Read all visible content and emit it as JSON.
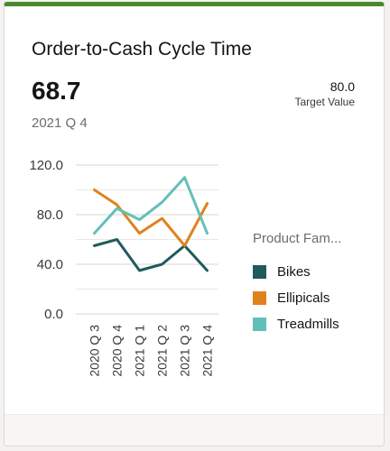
{
  "card": {
    "title": "Order-to-Cash Cycle Time",
    "kpi_value": "68.7",
    "kpi_period": "2021 Q 4",
    "target_value": "80.0",
    "target_label": "Target Value",
    "accent_color": "#4a8a2e"
  },
  "legend": {
    "title": "Product Fam...",
    "items": [
      {
        "label": "Bikes",
        "color": "#1f5a5e"
      },
      {
        "label": "Ellipicals",
        "color": "#e0821c"
      },
      {
        "label": "Treadmills",
        "color": "#63c0b8"
      }
    ]
  },
  "chart_data": {
    "type": "line",
    "categories": [
      "2020 Q 3",
      "2020 Q 4",
      "2021 Q 1",
      "2021 Q 2",
      "2021 Q 3",
      "2021 Q 4"
    ],
    "series": [
      {
        "name": "Bikes",
        "color": "#1f5a5e",
        "values": [
          55,
          60,
          35,
          40,
          55,
          35
        ]
      },
      {
        "name": "Ellipicals",
        "color": "#e0821c",
        "values": [
          100,
          88,
          65,
          77,
          55,
          89
        ]
      },
      {
        "name": "Treadmills",
        "color": "#63c0b8",
        "values": [
          65,
          85,
          76,
          90,
          110,
          65
        ]
      }
    ],
    "ylim": [
      0,
      120
    ],
    "yticks": [
      "0.0",
      "40.0",
      "80.0",
      "120.0"
    ],
    "minor_grid": true,
    "legend_position": "right"
  }
}
